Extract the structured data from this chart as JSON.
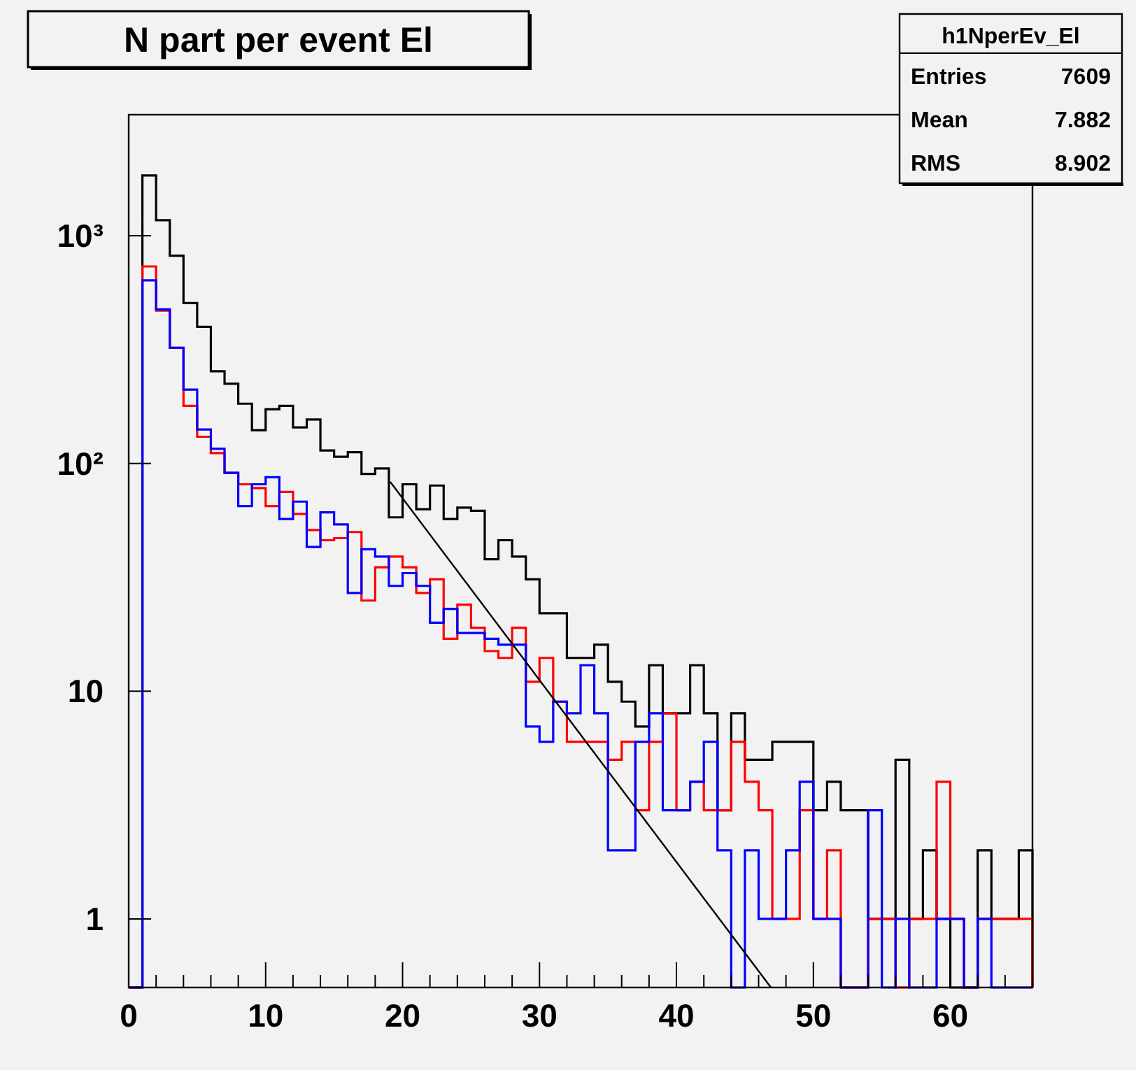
{
  "chart_data": {
    "type": "histogram",
    "title": "N part per event El",
    "annotations": [
      "h1NperEv_El",
      "Entries",
      "7609",
      "Mean",
      "7.882",
      "RMS",
      "8.902"
    ],
    "log": "y",
    "xlim": [
      0,
      66
    ],
    "ylim": [
      0.5,
      3400
    ],
    "xticks": [
      0,
      {
        "value": 2,
        "label": null
      },
      {
        "value": 4,
        "label": null
      },
      {
        "value": 6,
        "label": null
      },
      {
        "value": 8,
        "label": null
      },
      10,
      {
        "value": 12,
        "label": null
      },
      {
        "value": 14,
        "label": null
      },
      {
        "value": 16,
        "label": null
      },
      {
        "value": 18,
        "label": null
      },
      20,
      {
        "value": 22,
        "label": null
      },
      {
        "value": 24,
        "label": null
      },
      {
        "value": 26,
        "label": null
      },
      {
        "value": 28,
        "label": null
      },
      30,
      {
        "value": 32,
        "label": null
      },
      {
        "value": 34,
        "label": null
      },
      {
        "value": 36,
        "label": null
      },
      {
        "value": 38,
        "label": null
      },
      40,
      {
        "value": 42,
        "label": null
      },
      {
        "value": 44,
        "label": null
      },
      {
        "value": 46,
        "label": null
      },
      {
        "value": 48,
        "label": null
      },
      50,
      {
        "value": 52,
        "label": null
      },
      {
        "value": 54,
        "label": null
      },
      {
        "value": 56,
        "label": null
      },
      {
        "value": 58,
        "label": null
      },
      60,
      {
        "value": 62,
        "label": null
      },
      {
        "value": 64,
        "label": null
      }
    ],
    "yticks": [
      1,
      10,
      {
        "value": 100,
        "label": "10²"
      },
      {
        "value": 1000,
        "label": "10³"
      }
    ],
    "bins": [
      0,
      1,
      2,
      3,
      4,
      5,
      6,
      7,
      8,
      9,
      10,
      11,
      12,
      13,
      14,
      15,
      16,
      17,
      18,
      19,
      20,
      21,
      22,
      23,
      24,
      25,
      26,
      27,
      28,
      29,
      30,
      31,
      32,
      33,
      34,
      35,
      36,
      37,
      38,
      39,
      40,
      41,
      42,
      43,
      44,
      45,
      46,
      47,
      48,
      49,
      50,
      51,
      52,
      53,
      54,
      55,
      56,
      57,
      58,
      59,
      60,
      61,
      62,
      63,
      64,
      65,
      66
    ],
    "series": [
      {
        "color": "#000000",
        "values": [
          null,
          1840,
          1170,
          817,
          506,
          398,
          254,
          224,
          183,
          140,
          173,
          179,
          144,
          156,
          114,
          107,
          112,
          90,
          95,
          58,
          81,
          63,
          80,
          57,
          64,
          62,
          38,
          46,
          39,
          31,
          22,
          22,
          14,
          14,
          16,
          11,
          9,
          7,
          13,
          8,
          8,
          13,
          8,
          3,
          8,
          5,
          5,
          6,
          6,
          6,
          3,
          4,
          3,
          3,
          1,
          1,
          5,
          1,
          2,
          1,
          null,
          null,
          2,
          1,
          1,
          2
        ]
      },
      {
        "color": "#ff0000",
        "values": [
          null,
          733,
          469,
          322,
          179,
          131,
          111,
          91,
          81,
          78,
          65,
          75,
          60,
          51,
          46,
          47,
          50,
          25,
          35,
          39,
          35,
          27,
          31,
          17,
          24,
          19,
          15,
          14,
          19,
          11,
          14,
          9,
          6,
          6,
          6,
          5,
          6,
          3,
          6,
          8,
          3,
          4,
          3,
          3,
          6,
          4,
          3,
          1,
          1,
          3,
          1,
          2,
          null,
          null,
          1,
          1,
          null,
          1,
          1,
          4,
          1,
          null,
          1,
          1,
          1,
          1
        ]
      },
      {
        "color": "#0000ff",
        "values": [
          null,
          637,
          475,
          322,
          211,
          141,
          116,
          91,
          65,
          81,
          87,
          57,
          68,
          43,
          61,
          54,
          27,
          42,
          39,
          29,
          33,
          29,
          20,
          23,
          18,
          18,
          17,
          16,
          16,
          7,
          6,
          9,
          8,
          13,
          8,
          2,
          2,
          6,
          8,
          3,
          3,
          4,
          6,
          2,
          null,
          2,
          1,
          1,
          2,
          4,
          1,
          1,
          null,
          null,
          3,
          null,
          1,
          null,
          null,
          1,
          1,
          null,
          1,
          null,
          null,
          null
        ]
      },
      {
        "type": "line",
        "color": "#000000",
        "x": [
          19.1,
          46.9
        ],
        "values": [
          83,
          0.5
        ]
      }
    ]
  }
}
